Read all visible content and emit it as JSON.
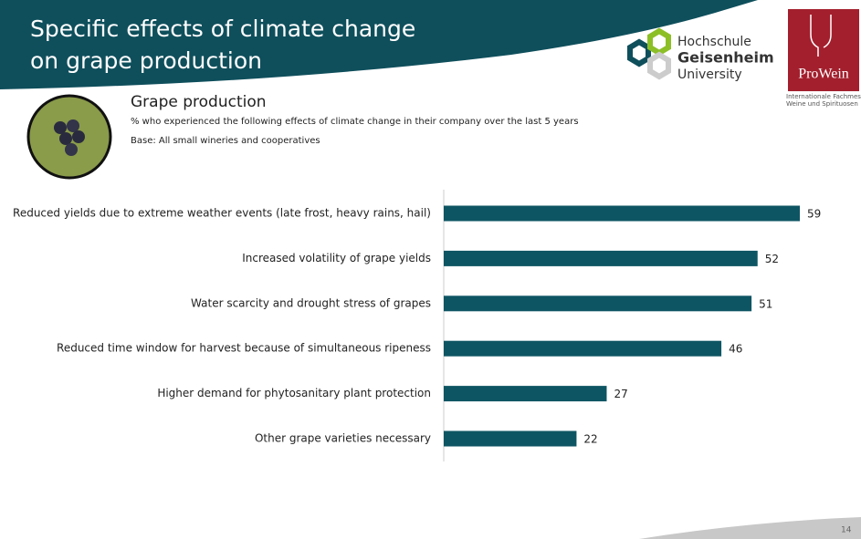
{
  "slide": {
    "title_lines": [
      "Specific effects of climate change",
      "on grape production"
    ],
    "page_number": "14"
  },
  "logos": {
    "hochschule": [
      "Hochschule",
      "Geisenheim",
      "University"
    ],
    "prowein": "ProWein",
    "prowein_sub": [
      "Internationale Fachmesse",
      "Weine und Spirituosen"
    ]
  },
  "chart_data": {
    "type": "barh",
    "title": "Grape production",
    "subtitle": "% who experienced  the following effects of climate change in their company over the last 5 years",
    "base": "Base: All small wineries and cooperatives",
    "categories": [
      "Reduced yields due to extreme weather events (late frost, heavy rains, hail)",
      "Increased volatility of grape yields",
      "Water scarcity and drought stress of grapes",
      "Reduced time window for harvest because of simultaneous ripeness",
      "Higher demand for phytosanitary plant protection",
      "Other grape varieties necessary"
    ],
    "values": [
      59,
      52,
      51,
      46,
      27,
      22
    ],
    "color": "#0e5563"
  }
}
